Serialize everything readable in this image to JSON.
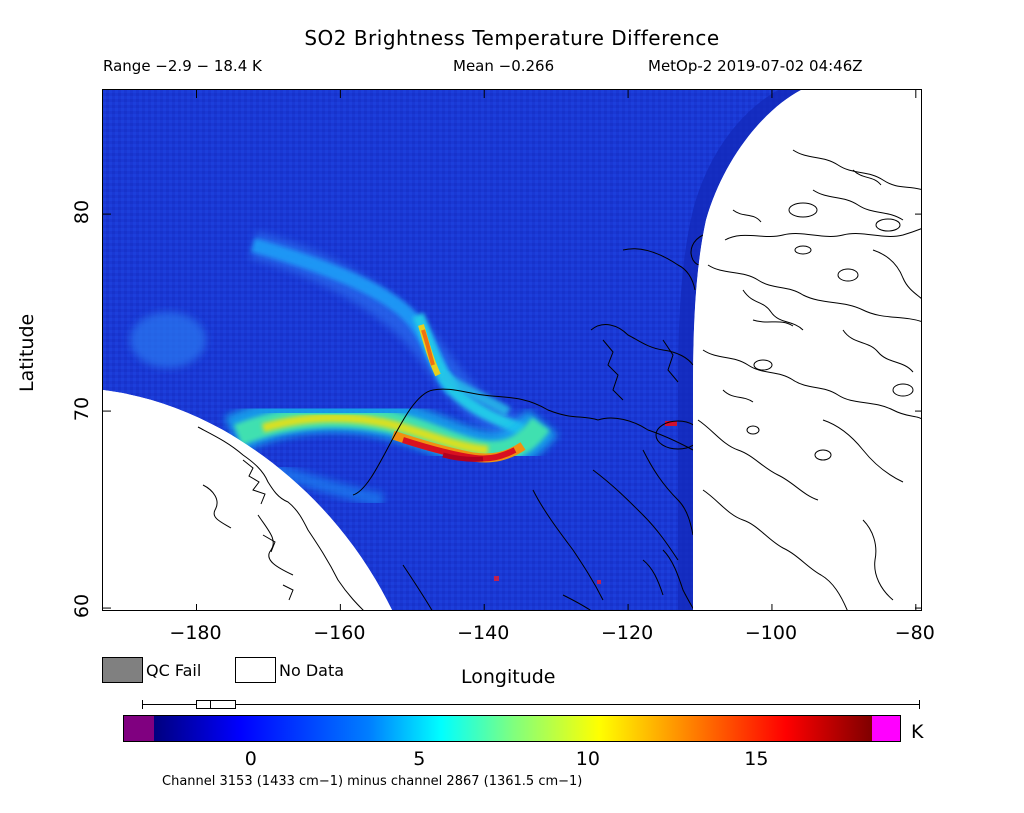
{
  "title": "SO2 Brightness Temperature Difference",
  "stats": {
    "range": "Range −2.9 − 18.4 K",
    "mean": "Mean −0.266",
    "satellite_time": "MetOp-2 2019-07-02 04:46Z"
  },
  "axes": {
    "xlabel": "Longitude",
    "ylabel": "Latitude",
    "xticks": [
      "−180",
      "−160",
      "−140",
      "−120",
      "−100",
      "−80"
    ],
    "xtick_values": [
      -180,
      -160,
      -140,
      -120,
      -100,
      -80
    ],
    "yticks": [
      "60",
      "70",
      "80"
    ],
    "ytick_values": [
      60,
      70,
      80
    ],
    "xlim": [
      -193,
      -79
    ],
    "ylim": [
      59.8,
      86.3
    ]
  },
  "legend": {
    "qc_fail": "QC Fail",
    "no_data": "No Data",
    "qc_fail_color": "#808080",
    "no_data_color": "#ffffff"
  },
  "colorbar": {
    "ticks": [
      "0",
      "5",
      "10",
      "15"
    ],
    "tick_values": [
      0,
      5,
      10,
      15
    ],
    "vmin": -2.9,
    "vmax": 18.4,
    "unit": "K",
    "under_color": "#800080",
    "over_color": "#ff00ff",
    "colormap": "jet"
  },
  "channel_note": "Channel 3153 (1433 cm−1) minus channel 2867 (1361.5 cm−1)",
  "colors": {
    "background_field": "#1a3ad6",
    "plume_core": "#c8102e",
    "coastline": "#000000"
  }
}
